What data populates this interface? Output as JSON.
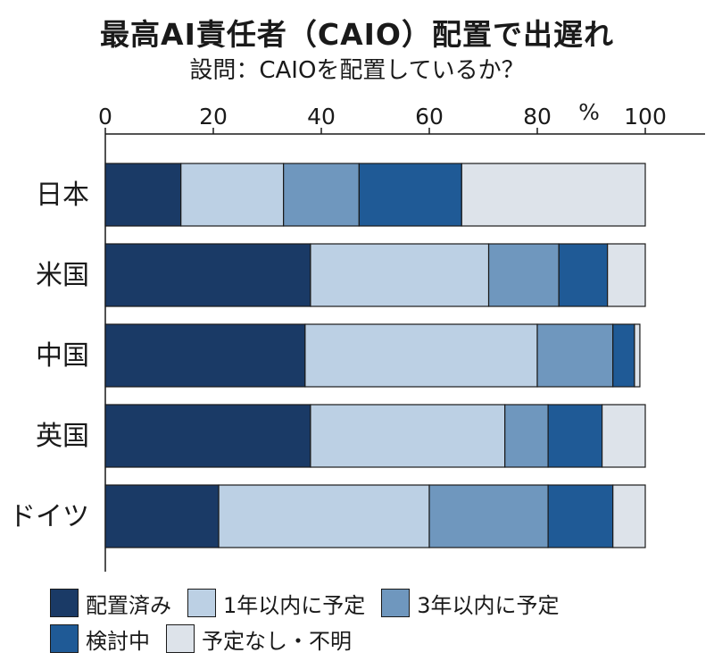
{
  "title": "最高AI責任者（CAIO）配置で出遅れ",
  "subtitle": "設問：CAIOを配置しているか？",
  "chart_data": {
    "type": "bar",
    "orientation": "horizontal",
    "stacked": true,
    "title": "最高AI責任者（CAIO）配置で出遅れ",
    "subtitle": "設問：CAIOを配置しているか？",
    "unit": "%",
    "xlim": [
      0,
      100
    ],
    "ticks": [
      "0",
      "20",
      "40",
      "60",
      "80",
      "100"
    ],
    "categories": [
      "日本",
      "米国",
      "中国",
      "英国",
      "ドイツ"
    ],
    "series": [
      {
        "name": "配置済み",
        "color": "#1a3a66",
        "values": [
          14,
          38,
          37,
          38,
          21
        ]
      },
      {
        "name": "1年以内に予定",
        "color": "#bcd0e4",
        "values": [
          19,
          33,
          43,
          36,
          39
        ]
      },
      {
        "name": "3年以内に予定",
        "color": "#6f97be",
        "values": [
          14,
          13,
          14,
          8,
          22
        ]
      },
      {
        "name": "検討中",
        "color": "#1f5a96",
        "values": [
          19,
          9,
          4,
          10,
          12
        ]
      },
      {
        "name": "予定なし・不明",
        "color": "#dde3ea",
        "values": [
          34,
          7,
          1,
          8,
          6
        ]
      }
    ],
    "legend_position": "bottom"
  }
}
